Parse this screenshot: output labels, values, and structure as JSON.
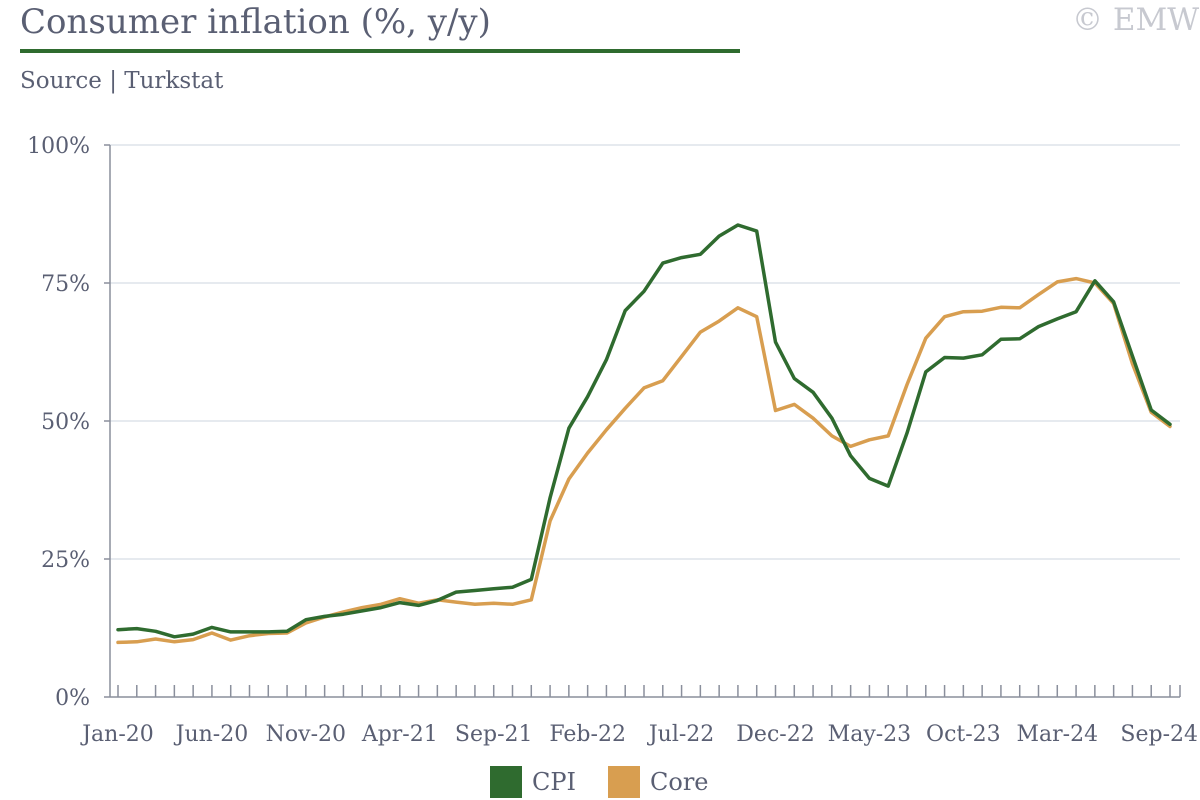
{
  "title": "Consumer inflation (%, y/y)",
  "subtitle": "Source | Turkstat",
  "watermark": "© EMW",
  "chart_data": {
    "type": "line",
    "title": "Consumer inflation (%, y/y)",
    "subtitle": "Source | Turkstat",
    "xlabel": "",
    "ylabel": "",
    "ylim": [
      0,
      100
    ],
    "y_ticks": [
      0,
      25,
      50,
      75,
      100
    ],
    "y_tick_labels": [
      "0%",
      "25%",
      "50%",
      "75%",
      "100%"
    ],
    "x_tick_labels": [
      "Jan-20",
      "Jun-20",
      "Nov-20",
      "Apr-21",
      "Sep-21",
      "Feb-22",
      "Jul-22",
      "Dec-22",
      "May-23",
      "Oct-23",
      "Mar-24",
      "Sep-24"
    ],
    "x_tick_label_indices": [
      0,
      5,
      10,
      15,
      20,
      25,
      30,
      35,
      40,
      45,
      50,
      56
    ],
    "grid": true,
    "legend_position": "bottom-center",
    "categories": [
      "Jan-20",
      "Feb-20",
      "Mar-20",
      "Apr-20",
      "May-20",
      "Jun-20",
      "Jul-20",
      "Aug-20",
      "Sep-20",
      "Oct-20",
      "Nov-20",
      "Dec-20",
      "Jan-21",
      "Feb-21",
      "Mar-21",
      "Apr-21",
      "May-21",
      "Jun-21",
      "Jul-21",
      "Aug-21",
      "Sep-21",
      "Oct-21",
      "Nov-21",
      "Dec-21",
      "Jan-22",
      "Feb-22",
      "Mar-22",
      "Apr-22",
      "May-22",
      "Jun-22",
      "Jul-22",
      "Aug-22",
      "Sep-22",
      "Oct-22",
      "Nov-22",
      "Dec-22",
      "Jan-23",
      "Feb-23",
      "Mar-23",
      "Apr-23",
      "May-23",
      "Jun-23",
      "Jul-23",
      "Aug-23",
      "Sep-23",
      "Oct-23",
      "Nov-23",
      "Dec-23",
      "Jan-24",
      "Feb-24",
      "Mar-24",
      "Apr-24",
      "May-24",
      "Jun-24",
      "Jul-24",
      "Aug-24",
      "Sep-24"
    ],
    "series": [
      {
        "name": "CPI",
        "color": "#2f6b2f",
        "values": [
          12.2,
          12.4,
          11.9,
          10.9,
          11.4,
          12.6,
          11.8,
          11.8,
          11.8,
          11.9,
          14.0,
          14.6,
          15.0,
          15.6,
          16.2,
          17.1,
          16.6,
          17.5,
          19.0,
          19.3,
          19.6,
          19.9,
          21.3,
          36.1,
          48.7,
          54.4,
          61.1,
          70.0,
          73.5,
          78.6,
          79.6,
          80.2,
          83.5,
          85.5,
          84.4,
          64.3,
          57.7,
          55.2,
          50.5,
          43.7,
          39.6,
          38.2,
          47.8,
          58.9,
          61.5,
          61.4,
          62.0,
          64.8,
          64.9,
          67.1,
          68.5,
          69.8,
          75.4,
          71.6,
          61.8,
          52.0,
          49.4
        ]
      },
      {
        "name": "Core",
        "color": "#d89e50",
        "values": [
          9.9,
          10.0,
          10.5,
          10.0,
          10.4,
          11.6,
          10.3,
          11.1,
          11.5,
          11.6,
          13.4,
          14.5,
          15.4,
          16.2,
          16.8,
          17.8,
          17.0,
          17.6,
          17.2,
          16.8,
          17.0,
          16.8,
          17.6,
          31.9,
          39.5,
          44.2,
          48.4,
          52.3,
          56.0,
          57.3,
          61.7,
          66.1,
          68.1,
          70.5,
          68.9,
          51.9,
          53.0,
          50.5,
          47.3,
          45.4,
          46.6,
          47.3,
          56.6,
          65.0,
          68.9,
          69.8,
          69.9,
          70.6,
          70.5,
          72.9,
          75.2,
          75.8,
          75.0,
          71.3,
          60.4,
          51.6,
          49.0
        ]
      }
    ]
  }
}
